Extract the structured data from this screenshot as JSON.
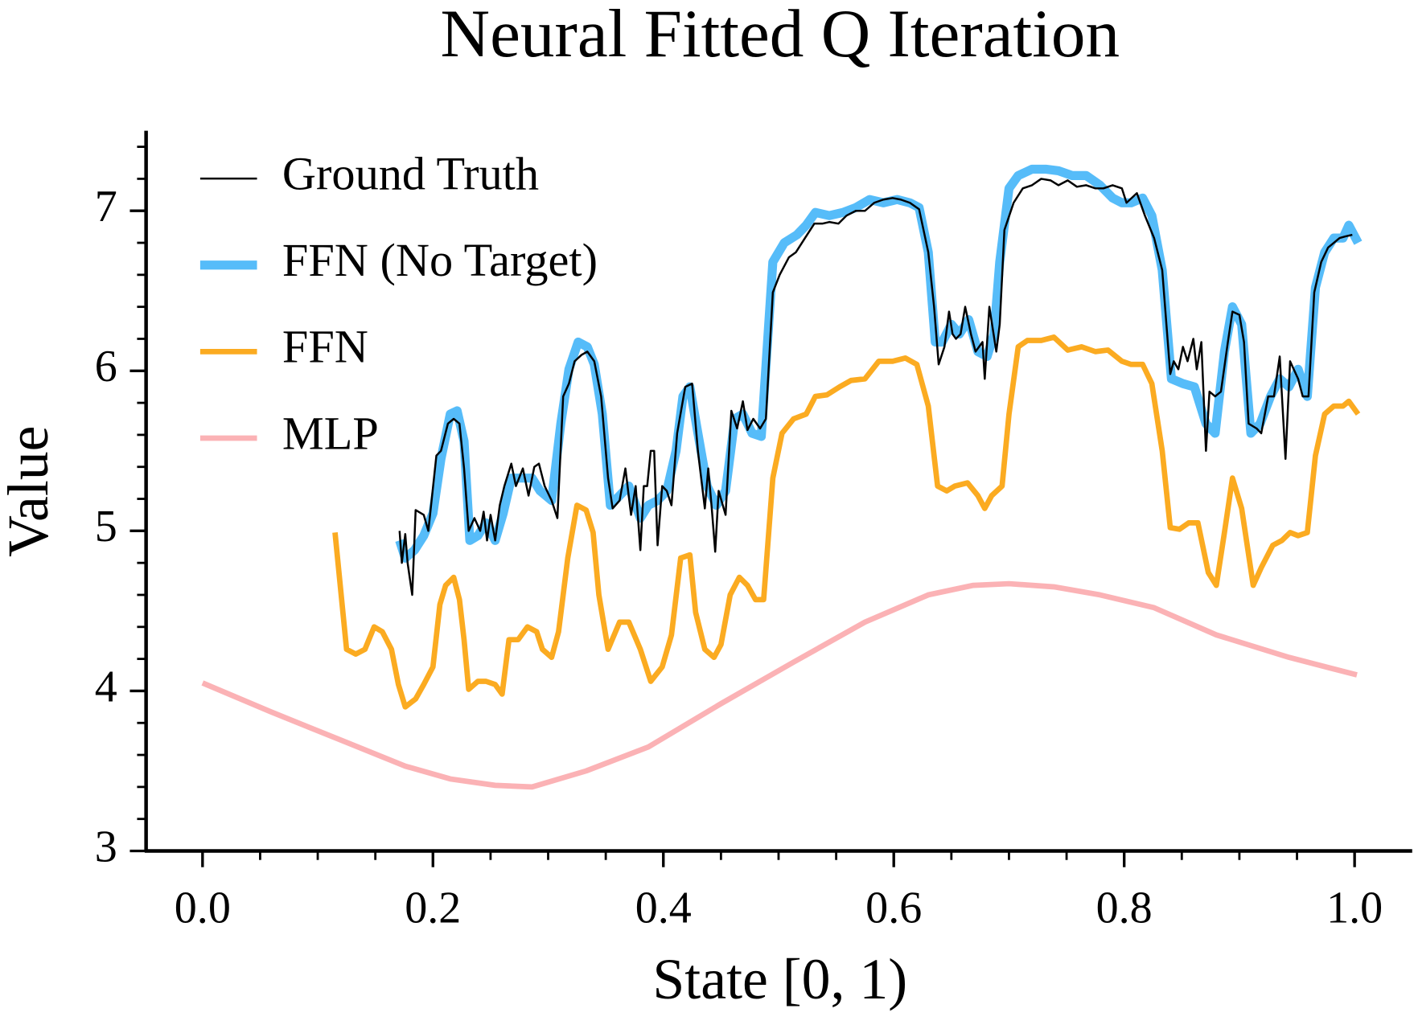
{
  "chart_data": {
    "type": "line",
    "title": "Neural Fitted Q Iteration",
    "x_label": "State [0, 1)",
    "y_label": "Value",
    "xlim": [
      -0.049,
      1.05
    ],
    "ylim": [
      3,
      7.5
    ],
    "xticks": [
      {
        "value": 0,
        "label": "0.0"
      },
      0.2,
      0.4,
      0.6,
      0.8,
      {
        "value": 1,
        "label": "1.0"
      }
    ],
    "yticks": [
      3,
      4,
      5,
      6,
      7
    ],
    "xminorticks": [
      0.05,
      0.1,
      0.15,
      0.25,
      0.3,
      0.35,
      0.45,
      0.5,
      0.55,
      0.65,
      0.7,
      0.75,
      0.85,
      0.9,
      0.95
    ],
    "yminorticks": [
      3.2,
      3.4,
      3.6,
      3.8,
      4.2,
      4.4,
      4.6,
      4.8,
      5.2,
      5.4,
      5.6,
      5.8,
      6.2,
      6.4,
      6.6,
      6.8,
      7.2,
      7.4
    ],
    "legend": "upper left",
    "series": [
      {
        "name": "Ground Truth",
        "color": "#000000",
        "line_width": 2.2,
        "x": [
          0.171,
          0.173,
          0.176,
          0.178,
          0.182,
          0.185,
          0.192,
          0.196,
          0.203,
          0.207,
          0.213,
          0.218,
          0.223,
          0.227,
          0.231,
          0.236,
          0.241,
          0.244,
          0.247,
          0.25,
          0.254,
          0.258,
          0.262,
          0.268,
          0.272,
          0.278,
          0.283,
          0.288,
          0.292,
          0.297,
          0.303,
          0.308,
          0.313,
          0.318,
          0.323,
          0.329,
          0.334,
          0.34,
          0.346,
          0.352,
          0.356,
          0.362,
          0.367,
          0.372,
          0.376,
          0.38,
          0.383,
          0.386,
          0.389,
          0.392,
          0.395,
          0.399,
          0.403,
          0.407,
          0.412,
          0.419,
          0.425,
          0.43,
          0.436,
          0.439,
          0.442,
          0.445,
          0.448,
          0.454,
          0.459,
          0.464,
          0.469,
          0.473,
          0.478,
          0.484,
          0.489,
          0.495,
          0.501,
          0.509,
          0.515,
          0.523,
          0.531,
          0.538,
          0.544,
          0.552,
          0.559,
          0.567,
          0.575,
          0.583,
          0.591,
          0.599,
          0.606,
          0.614,
          0.622,
          0.63,
          0.635,
          0.639,
          0.644,
          0.648,
          0.651,
          0.654,
          0.658,
          0.662,
          0.667,
          0.671,
          0.677,
          0.679,
          0.683,
          0.689,
          0.692,
          0.696,
          0.704,
          0.712,
          0.72,
          0.728,
          0.736,
          0.743,
          0.751,
          0.759,
          0.767,
          0.775,
          0.782,
          0.79,
          0.798,
          0.802,
          0.811,
          0.818,
          0.826,
          0.833,
          0.84,
          0.843,
          0.847,
          0.851,
          0.855,
          0.86,
          0.863,
          0.867,
          0.871,
          0.874,
          0.879,
          0.884,
          0.89,
          0.894,
          0.9,
          0.904,
          0.908,
          0.915,
          0.919,
          0.925,
          0.93,
          0.935,
          0.94,
          0.944,
          0.951,
          0.955,
          0.96,
          0.965,
          0.971,
          0.977,
          0.982,
          0.987,
          0.992,
          0.998
        ],
        "values": [
          5.0,
          4.8,
          4.98,
          4.8,
          4.6,
          5.13,
          5.1,
          5.0,
          5.47,
          5.5,
          5.67,
          5.7,
          5.67,
          5.39,
          5.0,
          5.08,
          5.0,
          5.12,
          4.94,
          5.1,
          4.94,
          5.16,
          5.28,
          5.42,
          5.28,
          5.39,
          5.22,
          5.4,
          5.42,
          5.28,
          5.19,
          5.08,
          5.84,
          5.92,
          6.06,
          6.1,
          6.12,
          6.06,
          5.84,
          5.33,
          5.14,
          5.19,
          5.39,
          5.1,
          5.28,
          4.88,
          5.28,
          5.28,
          5.5,
          5.5,
          4.91,
          5.28,
          5.25,
          5.16,
          5.61,
          5.9,
          5.92,
          5.5,
          5.14,
          5.39,
          5.14,
          4.87,
          5.25,
          5.1,
          5.75,
          5.64,
          5.81,
          5.63,
          5.7,
          5.64,
          5.7,
          6.49,
          6.6,
          6.71,
          6.74,
          6.83,
          6.92,
          6.92,
          6.93,
          6.92,
          6.97,
          7.0,
          7.0,
          7.05,
          7.07,
          7.08,
          7.07,
          7.05,
          7.01,
          6.74,
          6.4,
          6.04,
          6.15,
          6.37,
          6.23,
          6.2,
          6.23,
          6.4,
          6.23,
          6.12,
          6.18,
          5.95,
          6.4,
          6.12,
          6.29,
          6.88,
          7.05,
          7.14,
          7.16,
          7.2,
          7.19,
          7.16,
          7.19,
          7.15,
          7.16,
          7.14,
          7.14,
          7.16,
          7.14,
          7.05,
          7.11,
          6.97,
          6.83,
          6.63,
          5.98,
          6.06,
          6.01,
          6.15,
          6.06,
          6.2,
          6.01,
          6.18,
          5.5,
          5.87,
          5.84,
          5.87,
          6.18,
          6.37,
          6.35,
          6.18,
          5.67,
          5.64,
          5.61,
          5.84,
          5.84,
          6.09,
          5.45,
          6.06,
          5.95,
          5.84,
          5.84,
          6.49,
          6.68,
          6.77,
          6.8,
          6.83,
          6.84,
          6.85
        ]
      },
      {
        "name": "FFN (No Target)",
        "color": "#56bcf9",
        "line_width": 10,
        "x": [
          0.171,
          0.176,
          0.184,
          0.192,
          0.2,
          0.207,
          0.215,
          0.221,
          0.227,
          0.232,
          0.239,
          0.246,
          0.254,
          0.261,
          0.268,
          0.276,
          0.286,
          0.293,
          0.303,
          0.311,
          0.318,
          0.326,
          0.334,
          0.34,
          0.347,
          0.354,
          0.362,
          0.37,
          0.38,
          0.387,
          0.395,
          0.403,
          0.411,
          0.417,
          0.423,
          0.43,
          0.438,
          0.446,
          0.454,
          0.462,
          0.469,
          0.477,
          0.485,
          0.495,
          0.505,
          0.516,
          0.524,
          0.532,
          0.544,
          0.556,
          0.567,
          0.579,
          0.591,
          0.603,
          0.614,
          0.622,
          0.63,
          0.636,
          0.642,
          0.65,
          0.657,
          0.665,
          0.673,
          0.681,
          0.687,
          0.692,
          0.7,
          0.708,
          0.72,
          0.732,
          0.743,
          0.755,
          0.767,
          0.779,
          0.79,
          0.798,
          0.806,
          0.816,
          0.824,
          0.833,
          0.841,
          0.851,
          0.861,
          0.871,
          0.879,
          0.887,
          0.894,
          0.902,
          0.91,
          0.918,
          0.927,
          0.935,
          0.943,
          0.951,
          0.959,
          0.966,
          0.974,
          0.982,
          0.99,
          0.995,
          1.003
        ],
        "values": [
          4.94,
          4.83,
          4.88,
          4.97,
          5.11,
          5.45,
          5.73,
          5.75,
          5.56,
          4.94,
          4.97,
          5.05,
          4.94,
          5.11,
          5.33,
          5.33,
          5.33,
          5.25,
          5.19,
          5.67,
          6.01,
          6.18,
          6.15,
          6.04,
          5.73,
          5.16,
          5.22,
          5.28,
          5.08,
          5.16,
          5.19,
          5.25,
          5.5,
          5.84,
          5.9,
          5.61,
          5.28,
          5.16,
          5.25,
          5.7,
          5.73,
          5.61,
          5.59,
          6.68,
          6.8,
          6.85,
          6.91,
          6.99,
          6.97,
          6.99,
          7.02,
          7.07,
          7.05,
          7.07,
          7.05,
          7.02,
          6.74,
          6.18,
          6.18,
          6.29,
          6.23,
          6.32,
          6.12,
          6.09,
          6.23,
          6.68,
          7.14,
          7.22,
          7.26,
          7.26,
          7.25,
          7.22,
          7.22,
          7.16,
          7.08,
          7.05,
          7.05,
          7.08,
          6.97,
          6.63,
          5.95,
          5.92,
          5.9,
          5.67,
          5.61,
          6.12,
          6.4,
          6.29,
          5.61,
          5.67,
          5.84,
          5.95,
          5.9,
          6.01,
          5.84,
          6.52,
          6.74,
          6.83,
          6.83,
          6.91,
          6.8
        ]
      },
      {
        "name": "FFN",
        "color": "#fbab21",
        "line_width": 6,
        "x": [
          0.115,
          0.125,
          0.133,
          0.141,
          0.149,
          0.156,
          0.164,
          0.17,
          0.176,
          0.185,
          0.192,
          0.2,
          0.206,
          0.211,
          0.218,
          0.223,
          0.227,
          0.231,
          0.239,
          0.246,
          0.254,
          0.26,
          0.266,
          0.274,
          0.282,
          0.29,
          0.295,
          0.303,
          0.309,
          0.317,
          0.325,
          0.333,
          0.339,
          0.344,
          0.352,
          0.362,
          0.37,
          0.38,
          0.389,
          0.399,
          0.407,
          0.415,
          0.423,
          0.428,
          0.436,
          0.444,
          0.45,
          0.458,
          0.466,
          0.473,
          0.48,
          0.487,
          0.495,
          0.503,
          0.513,
          0.524,
          0.532,
          0.542,
          0.553,
          0.563,
          0.575,
          0.587,
          0.599,
          0.61,
          0.62,
          0.63,
          0.638,
          0.646,
          0.653,
          0.664,
          0.673,
          0.679,
          0.685,
          0.694,
          0.7,
          0.708,
          0.716,
          0.728,
          0.739,
          0.751,
          0.763,
          0.775,
          0.786,
          0.798,
          0.806,
          0.816,
          0.824,
          0.833,
          0.84,
          0.848,
          0.856,
          0.864,
          0.873,
          0.88,
          0.887,
          0.894,
          0.902,
          0.912,
          0.919,
          0.929,
          0.937,
          0.944,
          0.951,
          0.959,
          0.966,
          0.974,
          0.982,
          0.99,
          0.995,
          1.003
        ],
        "values": [
          4.99,
          4.26,
          4.23,
          4.26,
          4.4,
          4.37,
          4.26,
          4.04,
          3.9,
          3.95,
          4.04,
          4.15,
          4.54,
          4.66,
          4.71,
          4.57,
          4.32,
          4.01,
          4.06,
          4.06,
          4.04,
          3.98,
          4.32,
          4.32,
          4.4,
          4.37,
          4.26,
          4.21,
          4.37,
          4.83,
          5.16,
          5.13,
          4.99,
          4.6,
          4.26,
          4.43,
          4.43,
          4.26,
          4.06,
          4.15,
          4.35,
          4.83,
          4.85,
          4.49,
          4.26,
          4.21,
          4.29,
          4.6,
          4.71,
          4.66,
          4.57,
          4.57,
          5.33,
          5.61,
          5.7,
          5.73,
          5.84,
          5.85,
          5.9,
          5.94,
          5.95,
          6.06,
          6.06,
          6.08,
          6.04,
          5.78,
          5.28,
          5.25,
          5.28,
          5.3,
          5.22,
          5.14,
          5.22,
          5.28,
          5.73,
          6.15,
          6.19,
          6.19,
          6.21,
          6.13,
          6.15,
          6.12,
          6.13,
          6.06,
          6.04,
          6.04,
          5.92,
          5.5,
          5.02,
          5.01,
          5.05,
          5.05,
          4.74,
          4.66,
          4.99,
          5.33,
          5.14,
          4.66,
          4.77,
          4.91,
          4.94,
          4.99,
          4.97,
          4.99,
          5.47,
          5.73,
          5.78,
          5.78,
          5.81,
          5.73
        ]
      },
      {
        "name": "MLP",
        "color": "#fbb2b5",
        "line_width": 6,
        "x": [
          0,
          0.059,
          0.121,
          0.176,
          0.215,
          0.254,
          0.286,
          0.333,
          0.387,
          0.45,
          0.513,
          0.575,
          0.63,
          0.669,
          0.7,
          0.739,
          0.779,
          0.826,
          0.88,
          0.943,
          1.002
        ],
        "values": [
          4.05,
          3.87,
          3.69,
          3.53,
          3.45,
          3.41,
          3.4,
          3.5,
          3.65,
          3.92,
          4.18,
          4.43,
          4.6,
          4.66,
          4.67,
          4.65,
          4.6,
          4.52,
          4.35,
          4.21,
          4.1
        ]
      }
    ]
  }
}
